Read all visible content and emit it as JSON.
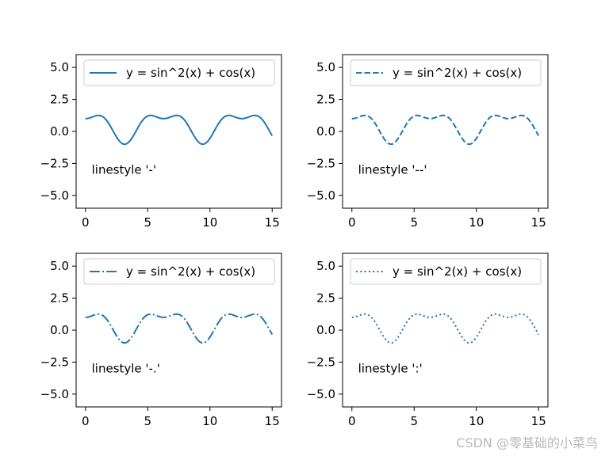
{
  "figure": {
    "background": "#ffffff",
    "line_color": "#1f77b4",
    "watermark": "CSDN @零基础的小菜鸟"
  },
  "chart_data": [
    {
      "type": "line",
      "linestyle": "solid",
      "series": [
        {
          "name": "y = sin^2(x) + cos(x)",
          "function": "sin(x)^2 + cos(x)",
          "x_range": [
            0,
            15
          ]
        }
      ],
      "annotation": "linestyle '-'",
      "xlim": [
        -0.75,
        15.75
      ],
      "ylim": [
        -6,
        6
      ],
      "xticks": [
        0,
        5,
        10,
        15
      ],
      "yticks": [
        5.0,
        2.5,
        0.0,
        -2.5,
        -5.0
      ],
      "xtick_labels": [
        "0",
        "5",
        "10",
        "15"
      ],
      "ytick_labels": [
        "5.0",
        "2.5",
        "0.0",
        "−2.5",
        "−5.0"
      ],
      "legend_position": "upper-right",
      "grid": false
    },
    {
      "type": "line",
      "linestyle": "dashed",
      "series": [
        {
          "name": "y = sin^2(x) + cos(x)",
          "function": "sin(x)^2 + cos(x)",
          "x_range": [
            0,
            15
          ]
        }
      ],
      "annotation": "linestyle '--'",
      "xlim": [
        -0.75,
        15.75
      ],
      "ylim": [
        -6,
        6
      ],
      "xticks": [
        0,
        5,
        10,
        15
      ],
      "yticks": [
        5.0,
        2.5,
        0.0,
        -2.5,
        -5.0
      ],
      "xtick_labels": [
        "0",
        "5",
        "10",
        "15"
      ],
      "ytick_labels": [
        "5.0",
        "2.5",
        "0.0",
        "−2.5",
        "−5.0"
      ],
      "legend_position": "upper-right",
      "grid": false
    },
    {
      "type": "line",
      "linestyle": "dashdot",
      "series": [
        {
          "name": "y = sin^2(x) + cos(x)",
          "function": "sin(x)^2 + cos(x)",
          "x_range": [
            0,
            15
          ]
        }
      ],
      "annotation": "linestyle '-.'",
      "xlim": [
        -0.75,
        15.75
      ],
      "ylim": [
        -6,
        6
      ],
      "xticks": [
        0,
        5,
        10,
        15
      ],
      "yticks": [
        5.0,
        2.5,
        0.0,
        -2.5,
        -5.0
      ],
      "xtick_labels": [
        "0",
        "5",
        "10",
        "15"
      ],
      "ytick_labels": [
        "5.0",
        "2.5",
        "0.0",
        "−2.5",
        "−5.0"
      ],
      "legend_position": "upper-right",
      "grid": false
    },
    {
      "type": "line",
      "linestyle": "dotted",
      "series": [
        {
          "name": "y = sin^2(x) + cos(x)",
          "function": "sin(x)^2 + cos(x)",
          "x_range": [
            0,
            15
          ]
        }
      ],
      "annotation": "linestyle ':'",
      "xlim": [
        -0.75,
        15.75
      ],
      "ylim": [
        -6,
        6
      ],
      "xticks": [
        0,
        5,
        10,
        15
      ],
      "yticks": [
        5.0,
        2.5,
        0.0,
        -2.5,
        -5.0
      ],
      "xtick_labels": [
        "0",
        "5",
        "10",
        "15"
      ],
      "ytick_labels": [
        "5.0",
        "2.5",
        "0.0",
        "−2.5",
        "−5.0"
      ],
      "legend_position": "upper-right",
      "grid": false
    }
  ]
}
